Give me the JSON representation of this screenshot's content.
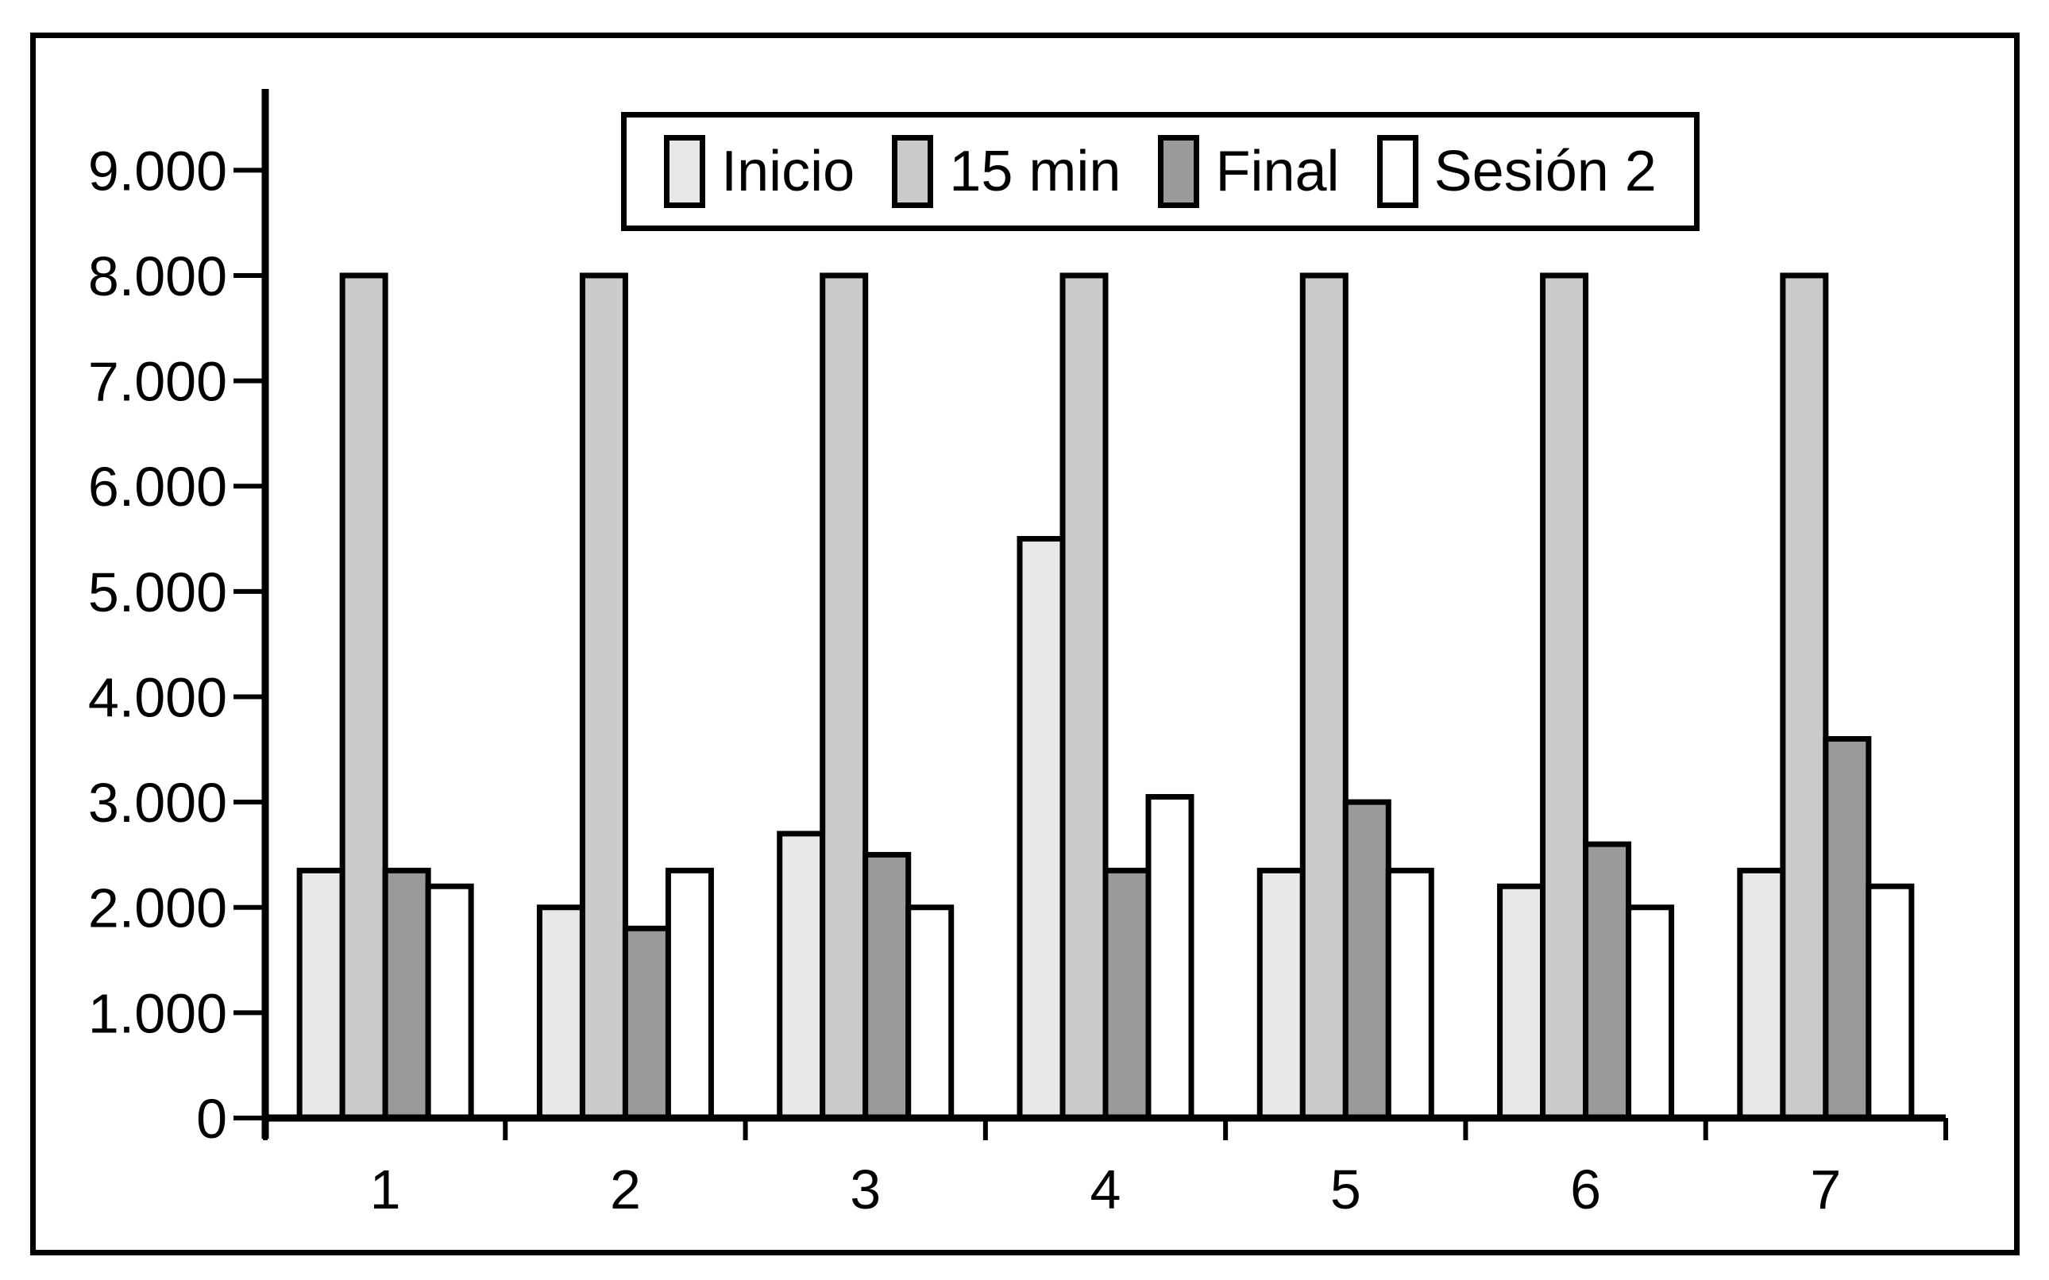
{
  "figure": {
    "type": "grouped-bar-figure",
    "title": ""
  },
  "chart_data": {
    "type": "bar",
    "title": "",
    "xlabel": "",
    "ylabel": "",
    "categories": [
      "1",
      "2",
      "3",
      "4",
      "5",
      "6",
      "7"
    ],
    "series": [
      {
        "name": "Inicio",
        "color": "#e8e8e8",
        "values": [
          2350,
          2000,
          2700,
          5500,
          2350,
          2200,
          2350
        ]
      },
      {
        "name": "15 min",
        "color": "#cbcbcb",
        "values": [
          8000,
          8000,
          8000,
          8000,
          8000,
          8000,
          8000
        ]
      },
      {
        "name": "Final",
        "color": "#9a9a9a",
        "values": [
          2350,
          1800,
          2500,
          2350,
          3000,
          2600,
          3600
        ]
      },
      {
        "name": "Sesión 2",
        "color": "#ffffff",
        "values": [
          2200,
          2350,
          2000,
          3050,
          2350,
          2000,
          2200
        ]
      }
    ],
    "ylim": [
      0,
      9000
    ],
    "ytick_step": 1000,
    "ytick_labels": [
      "0",
      "1.000",
      "2.000",
      "3.000",
      "4.000",
      "5.000",
      "6.000",
      "7.000",
      "8.000",
      "9.000"
    ],
    "grid": false,
    "legend_position": "top-center-inside",
    "bar_outline_color": "#000000",
    "axis_color": "#000000"
  }
}
